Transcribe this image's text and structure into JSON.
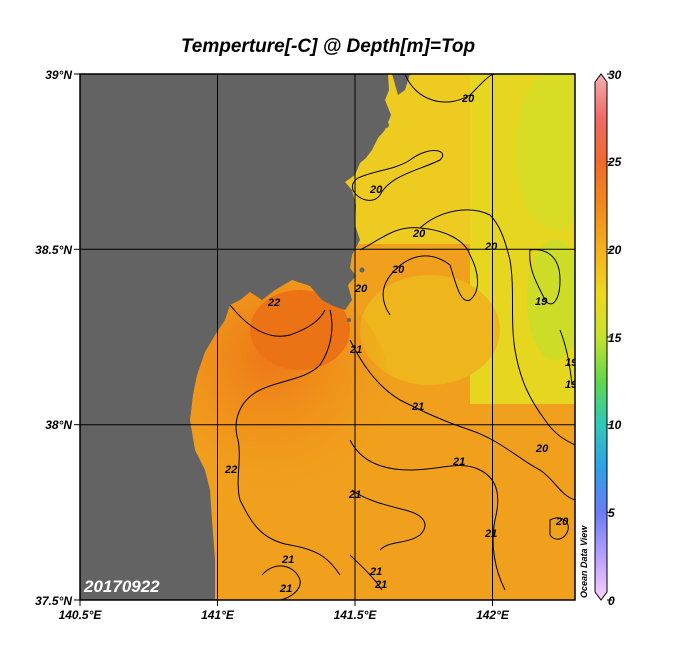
{
  "title": "Temperture[-C] @ Depth[m]=Top",
  "date_label": "20170922",
  "credit": "Ocean Data View",
  "map": {
    "lon_range": [
      140.5,
      142.3
    ],
    "lat_range": [
      37.5,
      39.0
    ],
    "lon_ticks": [
      "140.5°E",
      "141°E",
      "141.5°E",
      "142°E"
    ],
    "lat_ticks": [
      "39°N",
      "38.5°N",
      "38°N",
      "37.5°N"
    ],
    "land_color": "#636363",
    "grid": true
  },
  "colorbar": {
    "range": [
      0,
      30
    ],
    "ticks": [
      "30",
      "25",
      "20",
      "15",
      "10",
      "5",
      "0"
    ],
    "stops": [
      "#fbd0ff",
      "#b9a0ff",
      "#6a7cf2",
      "#2fa0e8",
      "#2fc8b8",
      "#5fd84a",
      "#c7e22c",
      "#eed81e",
      "#f3b01a",
      "#f08a1c",
      "#ef6a2e",
      "#ef6a66",
      "#f4b0b0"
    ]
  },
  "contour_labels": [
    "20",
    "20",
    "20",
    "20",
    "20",
    "19",
    "19",
    "19",
    "20",
    "20",
    "22",
    "20",
    "21",
    "21",
    "21",
    "22",
    "21",
    "21",
    "21",
    "21",
    "21",
    "21"
  ]
}
